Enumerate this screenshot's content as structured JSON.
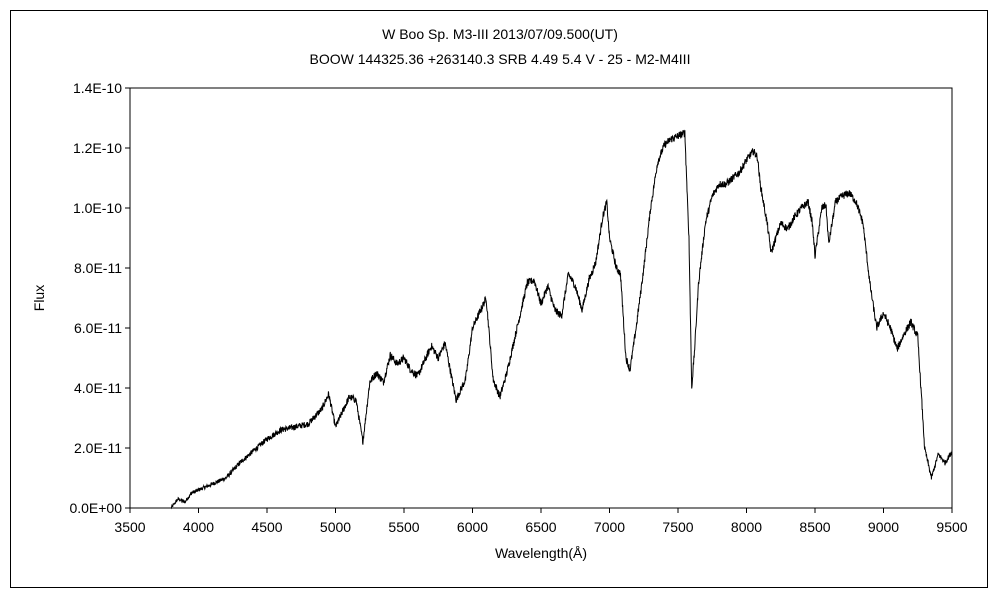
{
  "chart_data": {
    "type": "line",
    "title": "W Boo Sp. M3-III 2013/07/09.500(UT)",
    "subtitle": "BOOW 144325.36 +263140.3 SRB 4.49 5.4 V - 25 - M2-M4III",
    "xlabel": "Wavelength(Å)",
    "ylabel": "Flux",
    "xlim": [
      3500,
      9500
    ],
    "ylim": [
      0,
      1.4e-10
    ],
    "x_ticks": [
      "3500",
      "4000",
      "4500",
      "5000",
      "5500",
      "6000",
      "6500",
      "7000",
      "7500",
      "8000",
      "8500",
      "9000",
      "9500"
    ],
    "y_ticks": [
      "0.0E+00",
      "2.0E-11",
      "4.0E-11",
      "6.0E-11",
      "8.0E-11",
      "1.0E-10",
      "1.2E-10",
      "1.4E-10"
    ],
    "grid": false,
    "legend": "none",
    "line_color": "#000000",
    "series": [
      {
        "x": [
          3800,
          3850,
          3900,
          3950,
          4000,
          4100,
          4200,
          4300,
          4400,
          4500,
          4600,
          4700,
          4800,
          4900,
          4950,
          5000,
          5050,
          5100,
          5150,
          5200,
          5250,
          5300,
          5350,
          5400,
          5450,
          5500,
          5550,
          5600,
          5650,
          5700,
          5750,
          5800,
          5850,
          5880,
          5950,
          6000,
          6050,
          6100,
          6150,
          6200,
          6250,
          6300,
          6350,
          6400,
          6450,
          6500,
          6550,
          6600,
          6650,
          6700,
          6750,
          6800,
          6850,
          6900,
          6950,
          6980,
          7000,
          7050,
          7080,
          7120,
          7150,
          7200,
          7250,
          7300,
          7350,
          7400,
          7450,
          7500,
          7550,
          7580,
          7600,
          7620,
          7650,
          7700,
          7750,
          7800,
          7850,
          7900,
          7950,
          8000,
          8050,
          8080,
          8100,
          8150,
          8180,
          8200,
          8250,
          8300,
          8350,
          8400,
          8450,
          8480,
          8500,
          8550,
          8580,
          8600,
          8650,
          8700,
          8750,
          8800,
          8850,
          8900,
          8950,
          9000,
          9050,
          9100,
          9150,
          9200,
          9250,
          9280,
          9300,
          9350,
          9400,
          9450,
          9500
        ],
        "values": [
          0,
          3e-12,
          2e-12,
          5e-12,
          6e-12,
          8e-12,
          1e-11,
          1.5e-11,
          1.9e-11,
          2.3e-11,
          2.6e-11,
          2.7e-11,
          2.8e-11,
          3.3e-11,
          3.8e-11,
          2.7e-11,
          3.2e-11,
          3.7e-11,
          3.6e-11,
          2.2e-11,
          4.2e-11,
          4.5e-11,
          4.2e-11,
          5.1e-11,
          4.8e-11,
          5e-11,
          4.6e-11,
          4.4e-11,
          4.9e-11,
          5.4e-11,
          5e-11,
          5.5e-11,
          4.3e-11,
          3.6e-11,
          4.3e-11,
          6e-11,
          6.5e-11,
          7e-11,
          4.3e-11,
          3.7e-11,
          4.5e-11,
          5.5e-11,
          6.5e-11,
          7.5e-11,
          7.6e-11,
          6.8e-11,
          7.4e-11,
          6.6e-11,
          6.4e-11,
          7.8e-11,
          7.4e-11,
          6.6e-11,
          7.6e-11,
          8.2e-11,
          9.7e-11,
          1.02e-10,
          9e-11,
          8e-11,
          7.8e-11,
          5e-11,
          4.6e-11,
          6.2e-11,
          8e-11,
          1e-10,
          1.15e-10,
          1.21e-10,
          1.23e-10,
          1.24e-10,
          1.25e-10,
          9e-11,
          4e-11,
          5.2e-11,
          7.5e-11,
          9.5e-11,
          1.04e-10,
          1.08e-10,
          1.08e-10,
          1.1e-10,
          1.12e-10,
          1.16e-10,
          1.19e-10,
          1.17e-10,
          1.08e-10,
          9.5e-11,
          8.5e-11,
          8.8e-11,
          9.5e-11,
          9.3e-11,
          9.7e-11,
          1e-10,
          1.02e-10,
          9.5e-11,
          8.4e-11,
          1e-10,
          1.01e-10,
          8.8e-11,
          1.02e-10,
          1.04e-10,
          1.05e-10,
          1.02e-10,
          9.5e-11,
          7.5e-11,
          6e-11,
          6.5e-11,
          6e-11,
          5.3e-11,
          5.8e-11,
          6.2e-11,
          5.7e-11,
          3.5e-11,
          2e-11,
          1e-11,
          1.8e-11,
          1.5e-11,
          1.9e-11
        ]
      }
    ]
  }
}
